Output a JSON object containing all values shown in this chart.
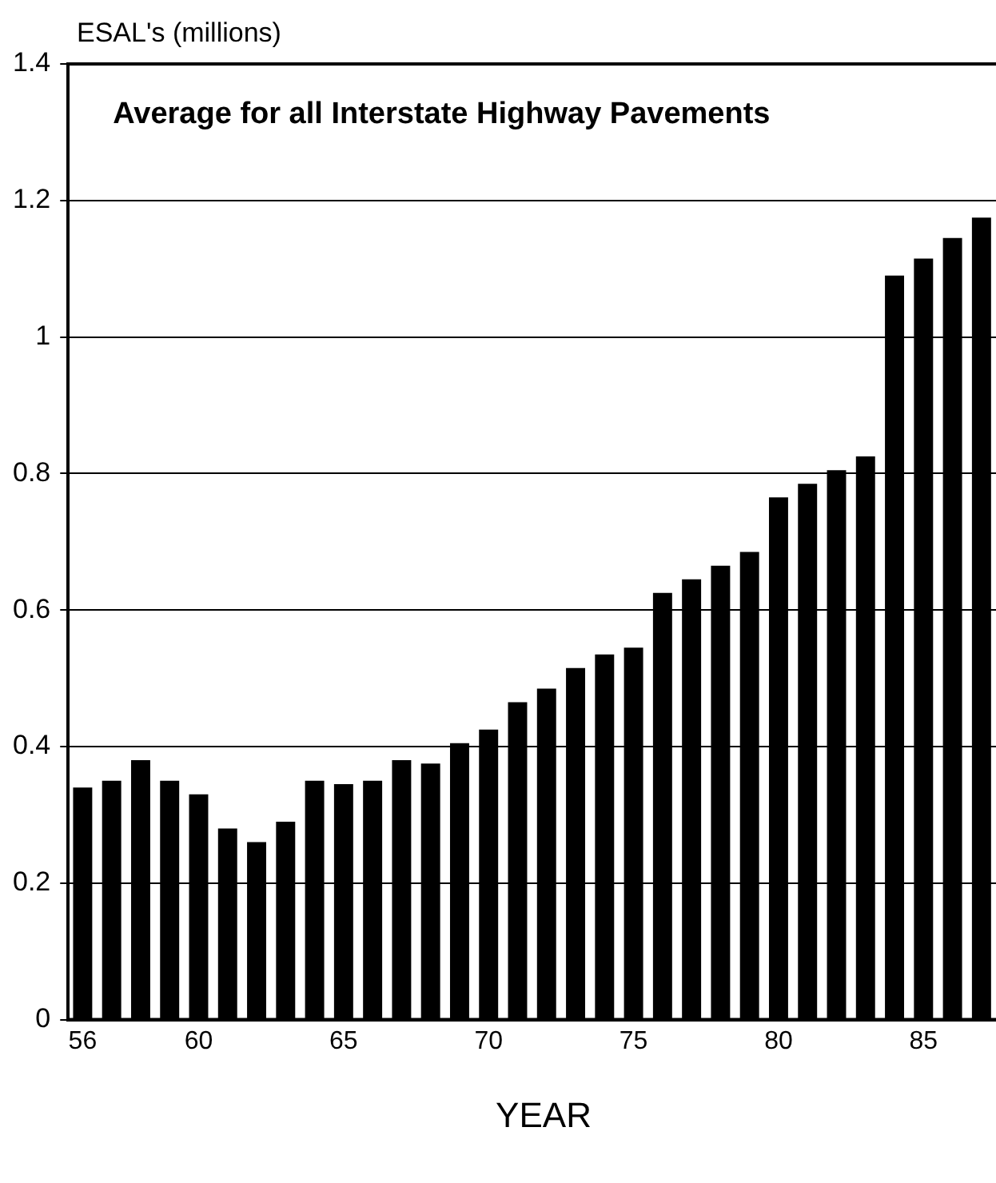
{
  "chart_data": {
    "type": "bar",
    "title": "Average for all Interstate Highway Pavements",
    "ylabel": "ESAL's (millions)",
    "xlabel": "YEAR",
    "categories": [
      "56",
      null,
      null,
      null,
      "60",
      null,
      null,
      null,
      null,
      "65",
      null,
      null,
      null,
      null,
      "70",
      null,
      null,
      null,
      null,
      "75",
      null,
      null,
      null,
      null,
      "80",
      null,
      null,
      null,
      null,
      "85",
      null,
      null
    ],
    "values": [
      0.34,
      0.35,
      0.38,
      0.35,
      0.33,
      0.28,
      0.26,
      0.29,
      0.35,
      0.345,
      0.35,
      0.38,
      0.375,
      0.405,
      0.425,
      0.465,
      0.485,
      0.515,
      0.535,
      0.545,
      0.625,
      0.645,
      0.665,
      0.685,
      0.765,
      0.785,
      0.805,
      0.825,
      1.09,
      1.115,
      1.145,
      1.175
    ],
    "color": "#000000",
    "ylim": [
      0,
      1.4
    ],
    "yticks": [
      0,
      0.2,
      0.4,
      0.6,
      0.8,
      1,
      1.2,
      1.4
    ],
    "grid": "y",
    "legend": false
  }
}
